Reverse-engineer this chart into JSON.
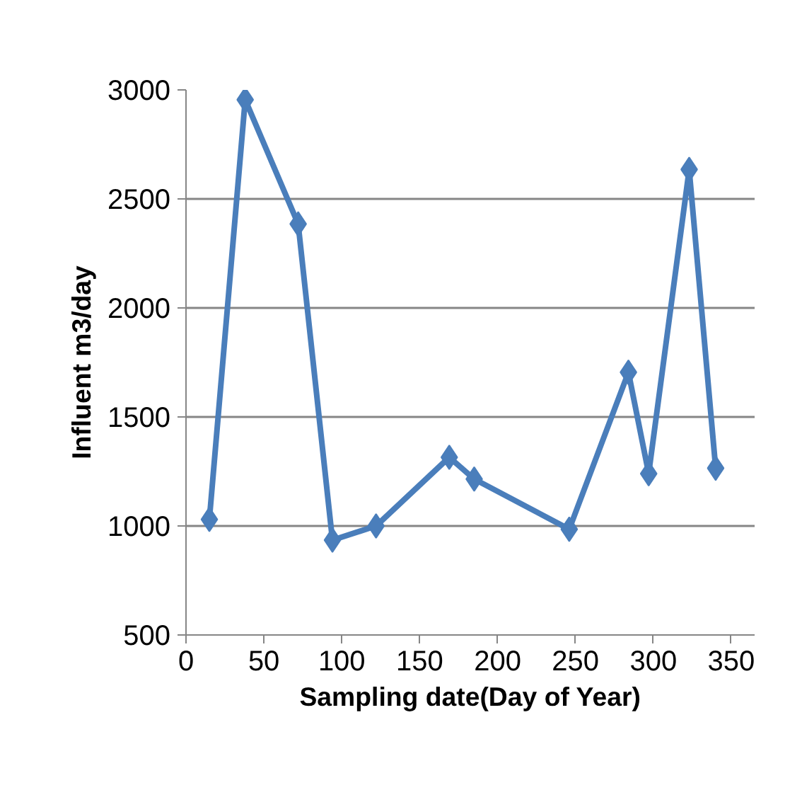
{
  "chart_data": {
    "type": "line",
    "xlabel": "Sampling date(Day of Year)",
    "ylabel": "Influent m3/day",
    "x": [
      15,
      38,
      72,
      94,
      122,
      169,
      185,
      246,
      284,
      297,
      323,
      340
    ],
    "series": [
      {
        "color": "#4a7ebb",
        "values": [
          1030,
          2955,
          2385,
          935,
          1000,
          1315,
          1215,
          985,
          1705,
          1240,
          2635,
          1265
        ]
      }
    ],
    "xlim": [
      0,
      365
    ],
    "xticks": [
      0,
      50,
      100,
      150,
      200,
      250,
      300,
      350
    ],
    "ylim": [
      500,
      3000
    ],
    "yticks": [
      500,
      1000,
      1500,
      2000,
      2500,
      3000
    ],
    "grid": "y",
    "marker": "diamond",
    "line_style": "solid"
  }
}
